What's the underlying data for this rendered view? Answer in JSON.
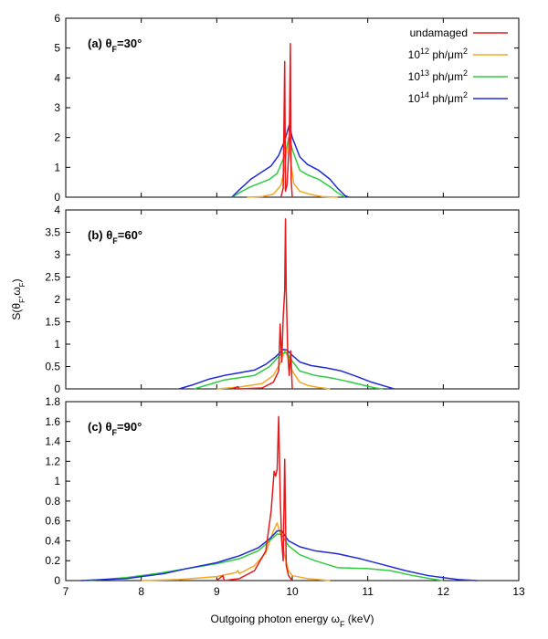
{
  "colors": {
    "undamaged": "#e41a1c",
    "dose_1e12": "#f5a623",
    "dose_1e13": "#2ecc40",
    "dose_1e14": "#1f2bd6"
  },
  "xlabel": {
    "prefix": "Outgoing photon energy ω",
    "sub": "F",
    "suffix": " (keV)"
  },
  "ylabel": {
    "prefix": "S(θ",
    "sub1": "F",
    "mid": ",ω",
    "sub2": "F",
    "suffix": ")"
  },
  "legend": [
    {
      "key": "undamaged",
      "base": "undamaged",
      "sup": "",
      "tail": ""
    },
    {
      "key": "dose_1e12",
      "base": "10",
      "sup": "12",
      "tail": " ph/μm",
      "sup2": "2"
    },
    {
      "key": "dose_1e13",
      "base": "10",
      "sup": "13",
      "tail": " ph/μm",
      "sup2": "2"
    },
    {
      "key": "dose_1e14",
      "base": "10",
      "sup": "14",
      "tail": " ph/μm",
      "sup2": "2"
    }
  ],
  "chart_data": [
    {
      "type": "line",
      "panel": "(a)",
      "label_prefix": "(a) θ",
      "label_sub": "F",
      "label_suffix": "=30°",
      "xlim": [
        7,
        13
      ],
      "ylim": [
        0,
        6
      ],
      "xticks": [
        "7",
        "8",
        "9",
        "10",
        "11",
        "12",
        "13"
      ],
      "yticks": [
        "0",
        "1",
        "2",
        "3",
        "4",
        "5",
        "6"
      ],
      "series": [
        {
          "name": "undamaged",
          "color_key": "undamaged",
          "points": [
            [
              9.85,
              0
            ],
            [
              9.88,
              0.3
            ],
            [
              9.9,
              4.55
            ],
            [
              9.91,
              0.2
            ],
            [
              9.93,
              0.4
            ],
            [
              9.96,
              1.8
            ],
            [
              9.975,
              5.15
            ],
            [
              9.985,
              0.6
            ],
            [
              10.0,
              0
            ]
          ]
        },
        {
          "name": "10^12 ph/μm^2",
          "color_key": "dose_1e12",
          "points": [
            [
              9.4,
              0
            ],
            [
              9.6,
              0.02
            ],
            [
              9.75,
              0.1
            ],
            [
              9.85,
              0.4
            ],
            [
              9.9,
              1.0
            ],
            [
              9.95,
              2.0
            ],
            [
              9.98,
              1.2
            ],
            [
              10.02,
              0.45
            ],
            [
              10.1,
              0.2
            ],
            [
              10.2,
              0.12
            ],
            [
              10.3,
              0.06
            ],
            [
              10.4,
              0.02
            ],
            [
              10.6,
              0
            ]
          ]
        },
        {
          "name": "10^13 ph/μm^2",
          "color_key": "dose_1e13",
          "points": [
            [
              9.2,
              0
            ],
            [
              9.3,
              0.15
            ],
            [
              9.45,
              0.35
            ],
            [
              9.6,
              0.5
            ],
            [
              9.7,
              0.6
            ],
            [
              9.8,
              0.8
            ],
            [
              9.9,
              1.4
            ],
            [
              9.96,
              2.05
            ],
            [
              10.0,
              1.6
            ],
            [
              10.1,
              0.9
            ],
            [
              10.2,
              0.75
            ],
            [
              10.35,
              0.6
            ],
            [
              10.5,
              0.35
            ],
            [
              10.6,
              0.15
            ],
            [
              10.7,
              0
            ]
          ]
        },
        {
          "name": "10^14 ph/μm^2",
          "color_key": "dose_1e14",
          "points": [
            [
              9.2,
              0
            ],
            [
              9.3,
              0.25
            ],
            [
              9.45,
              0.6
            ],
            [
              9.6,
              0.85
            ],
            [
              9.72,
              1.05
            ],
            [
              9.82,
              1.4
            ],
            [
              9.9,
              1.9
            ],
            [
              9.96,
              2.42
            ],
            [
              10.0,
              2.0
            ],
            [
              10.1,
              1.35
            ],
            [
              10.2,
              1.1
            ],
            [
              10.35,
              0.9
            ],
            [
              10.5,
              0.6
            ],
            [
              10.6,
              0.3
            ],
            [
              10.7,
              0.05
            ],
            [
              10.75,
              0
            ]
          ]
        }
      ]
    },
    {
      "type": "line",
      "panel": "(b)",
      "label_prefix": "(b) θ",
      "label_sub": "F",
      "label_suffix": "=60°",
      "xlim": [
        7,
        13
      ],
      "ylim": [
        0,
        4
      ],
      "xticks": [
        "7",
        "8",
        "9",
        "10",
        "11",
        "12",
        "13"
      ],
      "yticks": [
        "0",
        "0.5",
        "1",
        "1.5",
        "2",
        "2.5",
        "3",
        "3.5",
        "4"
      ],
      "series": [
        {
          "name": "undamaged",
          "color_key": "undamaged",
          "points": [
            [
              9.2,
              0
            ],
            [
              9.28,
              0.05
            ],
            [
              9.3,
              0
            ],
            [
              9.6,
              0.02
            ],
            [
              9.75,
              0.15
            ],
            [
              9.82,
              0.4
            ],
            [
              9.84,
              1.45
            ],
            [
              9.86,
              0.6
            ],
            [
              9.88,
              1.6
            ],
            [
              9.9,
              2.2
            ],
            [
              9.91,
              3.8
            ],
            [
              9.92,
              2.2
            ],
            [
              9.94,
              0.8
            ],
            [
              9.96,
              0.3
            ],
            [
              9.98,
              0.85
            ],
            [
              10.0,
              0
            ]
          ]
        },
        {
          "name": "10^12 ph/μm^2",
          "color_key": "dose_1e12",
          "points": [
            [
              9.0,
              0
            ],
            [
              9.3,
              0.04
            ],
            [
              9.6,
              0.12
            ],
            [
              9.75,
              0.3
            ],
            [
              9.85,
              0.6
            ],
            [
              9.9,
              0.85
            ],
            [
              9.95,
              0.7
            ],
            [
              10.0,
              0.4
            ],
            [
              10.1,
              0.15
            ],
            [
              10.2,
              0.08
            ],
            [
              10.35,
              0.03
            ],
            [
              10.5,
              0
            ]
          ]
        },
        {
          "name": "10^13 ph/μm^2",
          "color_key": "dose_1e13",
          "points": [
            [
              8.7,
              0
            ],
            [
              8.9,
              0.1
            ],
            [
              9.1,
              0.2
            ],
            [
              9.3,
              0.25
            ],
            [
              9.5,
              0.3
            ],
            [
              9.7,
              0.5
            ],
            [
              9.85,
              0.78
            ],
            [
              9.92,
              0.82
            ],
            [
              10.0,
              0.62
            ],
            [
              10.1,
              0.4
            ],
            [
              10.3,
              0.3
            ],
            [
              10.5,
              0.25
            ],
            [
              10.7,
              0.18
            ],
            [
              10.9,
              0.1
            ],
            [
              11.1,
              0.02
            ],
            [
              11.2,
              0
            ]
          ]
        },
        {
          "name": "10^14 ph/μm^2",
          "color_key": "dose_1e14",
          "points": [
            [
              8.5,
              0
            ],
            [
              8.7,
              0.1
            ],
            [
              8.9,
              0.22
            ],
            [
              9.1,
              0.3
            ],
            [
              9.3,
              0.36
            ],
            [
              9.5,
              0.42
            ],
            [
              9.65,
              0.55
            ],
            [
              9.78,
              0.72
            ],
            [
              9.88,
              0.88
            ],
            [
              9.93,
              0.87
            ],
            [
              10.0,
              0.75
            ],
            [
              10.1,
              0.6
            ],
            [
              10.25,
              0.52
            ],
            [
              10.45,
              0.47
            ],
            [
              10.65,
              0.4
            ],
            [
              10.85,
              0.28
            ],
            [
              11.05,
              0.15
            ],
            [
              11.25,
              0.05
            ],
            [
              11.35,
              0
            ]
          ]
        }
      ]
    },
    {
      "type": "line",
      "panel": "(c)",
      "label_prefix": "(c) θ",
      "label_sub": "F",
      "label_suffix": "=90°",
      "xlim": [
        7,
        13
      ],
      "ylim": [
        0,
        1.8
      ],
      "xticks": [
        "7",
        "8",
        "9",
        "10",
        "11",
        "12",
        "13"
      ],
      "yticks": [
        "0",
        "0.2",
        "0.4",
        "0.6",
        "0.8",
        "1",
        "1.2",
        "1.4",
        "1.6",
        "1.8"
      ],
      "series": [
        {
          "name": "undamaged",
          "color_key": "undamaged",
          "points": [
            [
              9.0,
              0
            ],
            [
              9.08,
              0.05
            ],
            [
              9.1,
              0
            ],
            [
              9.3,
              0.02
            ],
            [
              9.5,
              0.1
            ],
            [
              9.65,
              0.3
            ],
            [
              9.72,
              0.7
            ],
            [
              9.76,
              1.1
            ],
            [
              9.78,
              1.05
            ],
            [
              9.8,
              1.12
            ],
            [
              9.82,
              1.65
            ],
            [
              9.84,
              0.85
            ],
            [
              9.86,
              0.4
            ],
            [
              9.88,
              0.2
            ],
            [
              9.9,
              1.22
            ],
            [
              9.92,
              0.15
            ],
            [
              9.95,
              0.05
            ],
            [
              10.0,
              0
            ]
          ]
        },
        {
          "name": "10^12 ph/μm^2",
          "color_key": "dose_1e12",
          "points": [
            [
              8.0,
              0
            ],
            [
              8.5,
              0.01
            ],
            [
              9.0,
              0.04
            ],
            [
              9.25,
              0.08
            ],
            [
              9.28,
              0.1
            ],
            [
              9.3,
              0.07
            ],
            [
              9.5,
              0.15
            ],
            [
              9.65,
              0.28
            ],
            [
              9.75,
              0.5
            ],
            [
              9.8,
              0.58
            ],
            [
              9.85,
              0.45
            ],
            [
              9.9,
              0.25
            ],
            [
              9.95,
              0.1
            ],
            [
              10.0,
              0.05
            ],
            [
              10.2,
              0.02
            ],
            [
              10.5,
              0
            ]
          ]
        },
        {
          "name": "10^13 ph/μm^2",
          "color_key": "dose_1e13",
          "points": [
            [
              7.3,
              0
            ],
            [
              7.8,
              0.03
            ],
            [
              8.2,
              0.07
            ],
            [
              8.6,
              0.12
            ],
            [
              9.0,
              0.17
            ],
            [
              9.3,
              0.22
            ],
            [
              9.55,
              0.3
            ],
            [
              9.7,
              0.4
            ],
            [
              9.8,
              0.47
            ],
            [
              9.86,
              0.46
            ],
            [
              9.95,
              0.35
            ],
            [
              10.1,
              0.26
            ],
            [
              10.3,
              0.2
            ],
            [
              10.6,
              0.13
            ],
            [
              11.0,
              0.12
            ],
            [
              11.3,
              0.1
            ],
            [
              11.6,
              0.05
            ],
            [
              11.9,
              0.01
            ],
            [
              12.0,
              0
            ]
          ]
        },
        {
          "name": "10^14 ph/μm^2",
          "color_key": "dose_1e14",
          "points": [
            [
              7.2,
              0
            ],
            [
              7.5,
              0.01
            ],
            [
              7.8,
              0.02
            ],
            [
              8.0,
              0.04
            ],
            [
              8.3,
              0.07
            ],
            [
              8.6,
              0.12
            ],
            [
              9.0,
              0.18
            ],
            [
              9.3,
              0.25
            ],
            [
              9.55,
              0.33
            ],
            [
              9.7,
              0.42
            ],
            [
              9.8,
              0.5
            ],
            [
              9.86,
              0.5
            ],
            [
              9.95,
              0.4
            ],
            [
              10.1,
              0.34
            ],
            [
              10.3,
              0.3
            ],
            [
              10.6,
              0.27
            ],
            [
              10.9,
              0.22
            ],
            [
              11.2,
              0.16
            ],
            [
              11.5,
              0.1
            ],
            [
              11.8,
              0.05
            ],
            [
              12.0,
              0.03
            ],
            [
              12.2,
              0.01
            ],
            [
              12.45,
              0
            ]
          ]
        }
      ]
    }
  ]
}
